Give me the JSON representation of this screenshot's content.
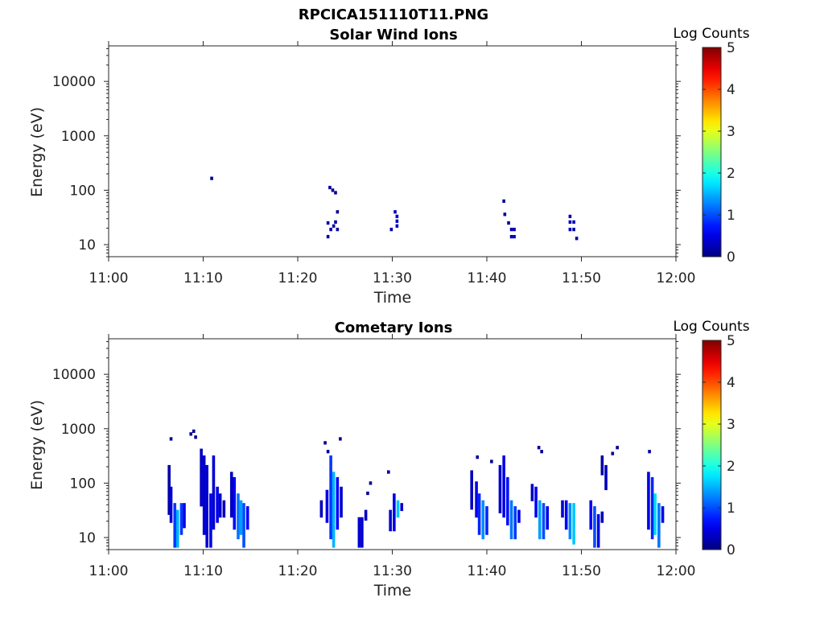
{
  "figure": {
    "title": "RPCICA151110T11.PNG"
  },
  "chart_data": [
    {
      "type": "heatmap",
      "title": "Solar Wind Ions",
      "xlabel": "Time",
      "ylabel": "Energy (eV)",
      "x_ticks": [
        "11:00",
        "11:10",
        "11:20",
        "11:30",
        "11:40",
        "11:50",
        "12:00"
      ],
      "x_range_minutes": [
        0,
        60
      ],
      "y_scale": "log",
      "y_ticks": [
        "10",
        "100",
        "1000",
        "10000"
      ],
      "y_range": [
        6,
        45000
      ],
      "colorbar": {
        "label": "Log Counts",
        "range": [
          0,
          5
        ],
        "ticks": [
          "0",
          "1",
          "2",
          "3",
          "4",
          "5"
        ]
      },
      "cells": [
        {
          "t": 10.9,
          "e": 165,
          "v": 0.1
        },
        {
          "t": 23.4,
          "e": 112,
          "v": 0.1
        },
        {
          "t": 23.7,
          "e": 100,
          "v": 0.1
        },
        {
          "t": 24.0,
          "e": 90,
          "v": 0.1
        },
        {
          "t": 24.2,
          "e": 40,
          "v": 0.1
        },
        {
          "t": 23.2,
          "e": 25,
          "v": 0.2
        },
        {
          "t": 23.2,
          "e": 14,
          "v": 0.2
        },
        {
          "t": 23.5,
          "e": 19,
          "v": 0.2
        },
        {
          "t": 23.8,
          "e": 22,
          "v": 0.2
        },
        {
          "t": 24.2,
          "e": 19,
          "v": 0.2
        },
        {
          "t": 24.0,
          "e": 26,
          "v": 0.1
        },
        {
          "t": 30.3,
          "e": 40,
          "v": 0.3
        },
        {
          "t": 30.5,
          "e": 33,
          "v": 0.3
        },
        {
          "t": 30.5,
          "e": 27,
          "v": 0.3
        },
        {
          "t": 30.5,
          "e": 22,
          "v": 0.3
        },
        {
          "t": 29.9,
          "e": 19,
          "v": 0.2
        },
        {
          "t": 41.8,
          "e": 63,
          "v": 0.1
        },
        {
          "t": 41.9,
          "e": 36,
          "v": 0.1
        },
        {
          "t": 42.3,
          "e": 25,
          "v": 0.1
        },
        {
          "t": 42.6,
          "e": 19,
          "v": 0.2
        },
        {
          "t": 42.6,
          "e": 14,
          "v": 0.3
        },
        {
          "t": 42.9,
          "e": 14,
          "v": 0.3
        },
        {
          "t": 42.9,
          "e": 19,
          "v": 0.2
        },
        {
          "t": 48.8,
          "e": 33,
          "v": 0.2
        },
        {
          "t": 48.8,
          "e": 26,
          "v": 0.3
        },
        {
          "t": 49.2,
          "e": 26,
          "v": 0.3
        },
        {
          "t": 48.8,
          "e": 19,
          "v": 0.3
        },
        {
          "t": 49.2,
          "e": 19,
          "v": 0.2
        },
        {
          "t": 49.5,
          "e": 13,
          "v": 0.2
        }
      ]
    },
    {
      "type": "heatmap",
      "title": "Cometary Ions",
      "xlabel": "Time",
      "ylabel": "Energy (eV)",
      "x_ticks": [
        "11:00",
        "11:10",
        "11:20",
        "11:30",
        "11:40",
        "11:50",
        "12:00"
      ],
      "x_range_minutes": [
        0,
        60
      ],
      "y_scale": "log",
      "y_ticks": [
        "10",
        "100",
        "1000",
        "10000"
      ],
      "y_range": [
        6,
        45000
      ],
      "colorbar": {
        "label": "Log Counts",
        "range": [
          0,
          5
        ],
        "ticks": [
          "0",
          "1",
          "2",
          "3",
          "4",
          "5"
        ]
      },
      "columns": [
        {
          "t": 6.4,
          "e": [
            28,
            200
          ],
          "v": 0.2
        },
        {
          "t": 6.6,
          "e": [
            20,
            80
          ],
          "v": 0.4
        },
        {
          "t": 7.0,
          "e": [
            7,
            40
          ],
          "v": 0.9
        },
        {
          "t": 7.3,
          "e": [
            7,
            30
          ],
          "v": 1.5
        },
        {
          "t": 7.7,
          "e": [
            12,
            40
          ],
          "v": 0.9
        },
        {
          "t": 8.0,
          "e": [
            16,
            40
          ],
          "v": 0.5
        },
        {
          "t": 9.8,
          "e": [
            40,
            400
          ],
          "v": 0.3
        },
        {
          "t": 10.1,
          "e": [
            12,
            300
          ],
          "v": 0.4
        },
        {
          "t": 10.4,
          "e": [
            7,
            200
          ],
          "v": 0.4
        },
        {
          "t": 10.8,
          "e": [
            7,
            60
          ],
          "v": 0.5
        },
        {
          "t": 11.1,
          "e": [
            15,
            300
          ],
          "v": 0.4
        },
        {
          "t": 11.5,
          "e": [
            20,
            80
          ],
          "v": 0.5
        },
        {
          "t": 11.8,
          "e": [
            25,
            60
          ],
          "v": 0.4
        },
        {
          "t": 12.2,
          "e": [
            25,
            45
          ],
          "v": 0.3
        },
        {
          "t": 13.0,
          "e": [
            25,
            150
          ],
          "v": 0.3
        },
        {
          "t": 13.3,
          "e": [
            15,
            120
          ],
          "v": 0.6
        },
        {
          "t": 13.7,
          "e": [
            10,
            60
          ],
          "v": 1.2
        },
        {
          "t": 14.0,
          "e": [
            12,
            45
          ],
          "v": 1.4
        },
        {
          "t": 14.3,
          "e": [
            7,
            40
          ],
          "v": 1.0
        },
        {
          "t": 14.7,
          "e": [
            15,
            35
          ],
          "v": 0.6
        },
        {
          "t": 22.5,
          "e": [
            25,
            45
          ],
          "v": 0.3
        },
        {
          "t": 23.1,
          "e": [
            20,
            70
          ],
          "v": 0.5
        },
        {
          "t": 23.5,
          "e": [
            10,
            300
          ],
          "v": 0.9
        },
        {
          "t": 23.8,
          "e": [
            7,
            150
          ],
          "v": 1.5
        },
        {
          "t": 24.2,
          "e": [
            15,
            120
          ],
          "v": 0.6
        },
        {
          "t": 24.6,
          "e": [
            25,
            80
          ],
          "v": 0.4
        },
        {
          "t": 26.5,
          "e": [
            7,
            22
          ],
          "v": 0.4
        },
        {
          "t": 26.8,
          "e": [
            7,
            22
          ],
          "v": 0.4
        },
        {
          "t": 27.2,
          "e": [
            22,
            30
          ],
          "v": 0.3
        },
        {
          "t": 29.8,
          "e": [
            14,
            30
          ],
          "v": 0.4
        },
        {
          "t": 30.2,
          "e": [
            14,
            60
          ],
          "v": 0.5
        },
        {
          "t": 30.6,
          "e": [
            25,
            45
          ],
          "v": 1.6
        },
        {
          "t": 31.0,
          "e": [
            33,
            40
          ],
          "v": 0.4
        },
        {
          "t": 38.4,
          "e": [
            35,
            160
          ],
          "v": 0.3
        },
        {
          "t": 38.9,
          "e": [
            25,
            100
          ],
          "v": 0.5
        },
        {
          "t": 39.2,
          "e": [
            12,
            60
          ],
          "v": 0.8
        },
        {
          "t": 39.6,
          "e": [
            10,
            45
          ],
          "v": 1.3
        },
        {
          "t": 40.0,
          "e": [
            12,
            35
          ],
          "v": 0.8
        },
        {
          "t": 41.4,
          "e": [
            30,
            200
          ],
          "v": 0.4
        },
        {
          "t": 41.8,
          "e": [
            25,
            300
          ],
          "v": 0.5
        },
        {
          "t": 42.2,
          "e": [
            18,
            120
          ],
          "v": 0.7
        },
        {
          "t": 42.6,
          "e": [
            10,
            45
          ],
          "v": 1.2
        },
        {
          "t": 43.0,
          "e": [
            10,
            35
          ],
          "v": 0.9
        },
        {
          "t": 43.4,
          "e": [
            20,
            30
          ],
          "v": 0.5
        },
        {
          "t": 44.8,
          "e": [
            50,
            90
          ],
          "v": 0.3
        },
        {
          "t": 45.2,
          "e": [
            25,
            80
          ],
          "v": 0.6
        },
        {
          "t": 45.6,
          "e": [
            10,
            45
          ],
          "v": 1.4
        },
        {
          "t": 46.0,
          "e": [
            10,
            40
          ],
          "v": 1.0
        },
        {
          "t": 46.4,
          "e": [
            15,
            35
          ],
          "v": 0.5
        },
        {
          "t": 48.0,
          "e": [
            25,
            45
          ],
          "v": 0.4
        },
        {
          "t": 48.4,
          "e": [
            15,
            45
          ],
          "v": 0.6
        },
        {
          "t": 48.8,
          "e": [
            10,
            40
          ],
          "v": 1.3
        },
        {
          "t": 49.2,
          "e": [
            8,
            40
          ],
          "v": 1.6
        },
        {
          "t": 51.0,
          "e": [
            15,
            45
          ],
          "v": 0.6
        },
        {
          "t": 51.4,
          "e": [
            7,
            35
          ],
          "v": 1.0
        },
        {
          "t": 51.8,
          "e": [
            7,
            25
          ],
          "v": 0.5
        },
        {
          "t": 52.2,
          "e": [
            20,
            28
          ],
          "v": 0.3
        },
        {
          "t": 52.2,
          "e": [
            150,
            300
          ],
          "v": 0.2
        },
        {
          "t": 52.6,
          "e": [
            80,
            200
          ],
          "v": 0.3
        },
        {
          "t": 57.1,
          "e": [
            15,
            150
          ],
          "v": 0.5
        },
        {
          "t": 57.5,
          "e": [
            10,
            120
          ],
          "v": 0.8
        },
        {
          "t": 57.8,
          "e": [
            12,
            60
          ],
          "v": 1.7
        },
        {
          "t": 58.2,
          "e": [
            7,
            40
          ],
          "v": 1.2
        },
        {
          "t": 58.6,
          "e": [
            20,
            35
          ],
          "v": 0.5
        }
      ],
      "cells": [
        {
          "t": 6.6,
          "e": 650,
          "v": 0.1
        },
        {
          "t": 8.7,
          "e": 800,
          "v": 0.1
        },
        {
          "t": 9.0,
          "e": 900,
          "v": 0.1
        },
        {
          "t": 9.2,
          "e": 700,
          "v": 0.1
        },
        {
          "t": 22.9,
          "e": 550,
          "v": 0.1
        },
        {
          "t": 24.5,
          "e": 650,
          "v": 0.1
        },
        {
          "t": 23.2,
          "e": 380,
          "v": 0.1
        },
        {
          "t": 27.4,
          "e": 65,
          "v": 0.1
        },
        {
          "t": 27.7,
          "e": 100,
          "v": 0.1
        },
        {
          "t": 29.6,
          "e": 160,
          "v": 0.1
        },
        {
          "t": 39.0,
          "e": 300,
          "v": 0.1
        },
        {
          "t": 40.5,
          "e": 250,
          "v": 0.1
        },
        {
          "t": 45.5,
          "e": 450,
          "v": 0.1
        },
        {
          "t": 45.8,
          "e": 380,
          "v": 0.1
        },
        {
          "t": 53.8,
          "e": 450,
          "v": 0.1
        },
        {
          "t": 53.3,
          "e": 350,
          "v": 0.1
        },
        {
          "t": 57.2,
          "e": 380,
          "v": 0.1
        }
      ]
    }
  ]
}
